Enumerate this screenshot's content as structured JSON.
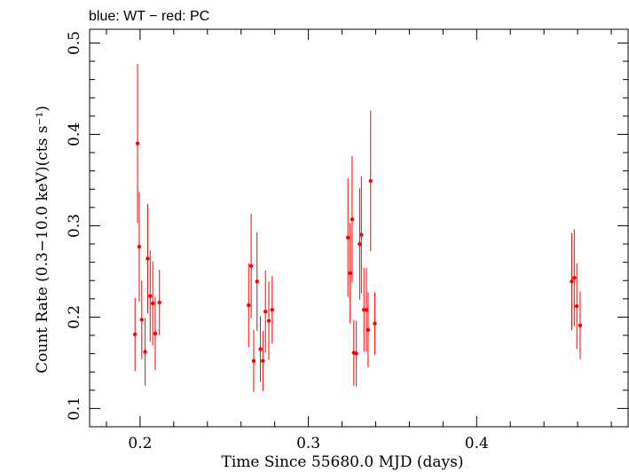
{
  "chart_data": {
    "type": "scatter",
    "title": "blue: WT − red: PC",
    "xlabel": "Time Since 55680.0 MJD (days)",
    "ylabel": "Count Rate (0.3−10.0 keV)(cts s⁻¹)",
    "xlim": [
      0.17,
      0.49
    ],
    "ylim": [
      0.08,
      0.515
    ],
    "xticks_major": [
      0.2,
      0.3,
      0.4
    ],
    "xtick_labels": [
      "0.2",
      "0.3",
      "0.4"
    ],
    "yticks_major": [
      0.1,
      0.2,
      0.3,
      0.4,
      0.5
    ],
    "ytick_labels": [
      "0.1",
      "0.2",
      "0.3",
      "0.4",
      "0.5"
    ],
    "grid": false,
    "series": [
      {
        "color": "#ff0000",
        "points": [
          {
            "x": 0.197,
            "y": 0.181,
            "err": 0.04
          },
          {
            "x": 0.1985,
            "y": 0.39,
            "err": 0.087
          },
          {
            "x": 0.1995,
            "y": 0.277,
            "err": 0.06
          },
          {
            "x": 0.201,
            "y": 0.197,
            "err": 0.043
          },
          {
            "x": 0.203,
            "y": 0.162,
            "err": 0.037
          },
          {
            "x": 0.2045,
            "y": 0.264,
            "err": 0.06
          },
          {
            "x": 0.206,
            "y": 0.223,
            "err": 0.05
          },
          {
            "x": 0.2075,
            "y": 0.215,
            "err": 0.046
          },
          {
            "x": 0.209,
            "y": 0.182,
            "err": 0.04
          },
          {
            "x": 0.2115,
            "y": 0.216,
            "err": 0.036
          },
          {
            "x": 0.2645,
            "y": 0.213,
            "err": 0.046
          },
          {
            "x": 0.266,
            "y": 0.256,
            "err": 0.057
          },
          {
            "x": 0.2675,
            "y": 0.152,
            "err": 0.034
          },
          {
            "x": 0.2695,
            "y": 0.239,
            "err": 0.054
          },
          {
            "x": 0.2715,
            "y": 0.165,
            "err": 0.036
          },
          {
            "x": 0.273,
            "y": 0.152,
            "err": 0.033
          },
          {
            "x": 0.2745,
            "y": 0.206,
            "err": 0.045
          },
          {
            "x": 0.2765,
            "y": 0.196,
            "err": 0.043
          },
          {
            "x": 0.2785,
            "y": 0.208,
            "err": 0.037
          },
          {
            "x": 0.3235,
            "y": 0.287,
            "err": 0.065
          },
          {
            "x": 0.3248,
            "y": 0.248,
            "err": 0.055
          },
          {
            "x": 0.326,
            "y": 0.307,
            "err": 0.069
          },
          {
            "x": 0.327,
            "y": 0.161,
            "err": 0.036
          },
          {
            "x": 0.3285,
            "y": 0.16,
            "err": 0.036
          },
          {
            "x": 0.3305,
            "y": 0.28,
            "err": 0.061
          },
          {
            "x": 0.3315,
            "y": 0.29,
            "err": 0.064
          },
          {
            "x": 0.333,
            "y": 0.208,
            "err": 0.046
          },
          {
            "x": 0.3345,
            "y": 0.208,
            "err": 0.046
          },
          {
            "x": 0.3355,
            "y": 0.186,
            "err": 0.041
          },
          {
            "x": 0.337,
            "y": 0.349,
            "err": 0.077
          },
          {
            "x": 0.3395,
            "y": 0.193,
            "err": 0.034
          },
          {
            "x": 0.4565,
            "y": 0.239,
            "err": 0.053
          },
          {
            "x": 0.458,
            "y": 0.243,
            "err": 0.053
          },
          {
            "x": 0.4595,
            "y": 0.212,
            "err": 0.047
          },
          {
            "x": 0.4615,
            "y": 0.191,
            "err": 0.037
          }
        ]
      }
    ]
  }
}
